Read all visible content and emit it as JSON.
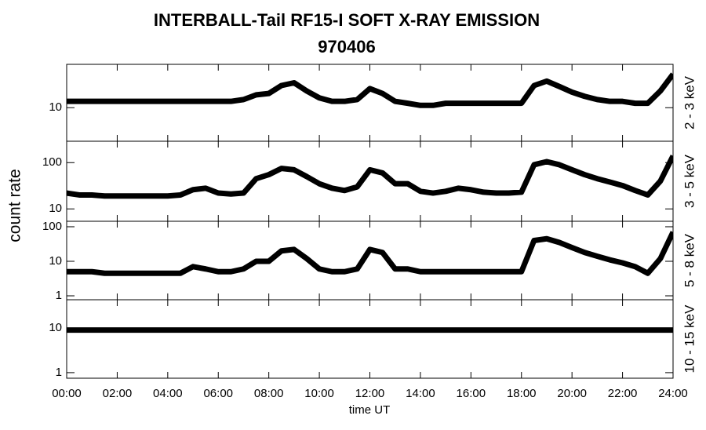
{
  "title": "INTERBALL-Tail RF15-I SOFT X-RAY EMISSION",
  "subtitle": "970406",
  "x_label": "time UT",
  "y_label": "count rate",
  "chart_data": [
    {
      "type": "line",
      "label": "2 - 3 keV",
      "color": "#000000",
      "log_y": true,
      "xlim": [
        0,
        24
      ],
      "ylim": [
        2.5,
        60
      ],
      "yticks": [
        10
      ],
      "x": [
        0,
        0.5,
        1,
        1.5,
        2,
        2.5,
        3,
        3.5,
        4,
        4.5,
        5,
        5.5,
        6,
        6.5,
        7,
        7.5,
        8,
        8.5,
        9,
        9.5,
        10,
        10.5,
        11,
        11.5,
        12,
        12.5,
        13,
        13.5,
        14,
        14.5,
        15,
        15.5,
        16,
        16.5,
        17,
        17.5,
        18,
        18.5,
        19,
        19.5,
        20,
        20.5,
        21,
        21.5,
        22,
        22.5,
        23,
        23.5,
        24
      ],
      "values": [
        13,
        13,
        13,
        13,
        13,
        13,
        13,
        13,
        13,
        13,
        13,
        13,
        13,
        13,
        14,
        17,
        18,
        25,
        28,
        20,
        15,
        13,
        13,
        14,
        22,
        18,
        13,
        12,
        11,
        11,
        12,
        12,
        12,
        12,
        12,
        12,
        12,
        25,
        30,
        24,
        19,
        16,
        14,
        13,
        13,
        12,
        12,
        20,
        40
      ]
    },
    {
      "type": "line",
      "label": "3 - 5 keV",
      "color": "#000000",
      "log_y": true,
      "xlim": [
        0,
        24
      ],
      "ylim": [
        5.4,
        290
      ],
      "yticks": [
        10,
        100
      ],
      "x": [
        0,
        0.5,
        1,
        1.5,
        2,
        2.5,
        3,
        3.5,
        4,
        4.5,
        5,
        5.5,
        6,
        6.5,
        7,
        7.5,
        8,
        8.5,
        9,
        9.5,
        10,
        10.5,
        11,
        11.5,
        12,
        12.5,
        13,
        13.5,
        14,
        14.5,
        15,
        15.5,
        16,
        16.5,
        17,
        17.5,
        18,
        18.5,
        19,
        19.5,
        20,
        20.5,
        21,
        21.5,
        22,
        22.5,
        23,
        23.5,
        24
      ],
      "values": [
        22,
        20,
        20,
        19,
        19,
        19,
        19,
        19,
        19,
        20,
        26,
        28,
        22,
        21,
        22,
        45,
        55,
        75,
        70,
        50,
        35,
        28,
        25,
        30,
        70,
        60,
        35,
        35,
        24,
        22,
        24,
        28,
        26,
        23,
        22,
        22,
        23,
        90,
        105,
        90,
        70,
        55,
        45,
        38,
        32,
        25,
        20,
        40,
        140
      ]
    },
    {
      "type": "line",
      "label": "5 - 8 keV",
      "color": "#000000",
      "log_y": true,
      "xlim": [
        0,
        24
      ],
      "ylim": [
        0.77,
        144
      ],
      "yticks": [
        1,
        10,
        100
      ],
      "x": [
        0,
        0.5,
        1,
        1.5,
        2,
        2.5,
        3,
        3.5,
        4,
        4.5,
        5,
        5.5,
        6,
        6.5,
        7,
        7.5,
        8,
        8.5,
        9,
        9.5,
        10,
        10.5,
        11,
        11.5,
        12,
        12.5,
        13,
        13.5,
        14,
        14.5,
        15,
        15.5,
        16,
        16.5,
        17,
        17.5,
        18,
        18.5,
        19,
        19.5,
        20,
        20.5,
        21,
        21.5,
        22,
        22.5,
        23,
        23.5,
        24
      ],
      "values": [
        5,
        5,
        5,
        4.5,
        4.5,
        4.5,
        4.5,
        4.5,
        4.5,
        4.5,
        7,
        6,
        5,
        5,
        6,
        10,
        10,
        20,
        22,
        12,
        6,
        5,
        5,
        6,
        22,
        18,
        6,
        6,
        5,
        5,
        5,
        5,
        5,
        5,
        5,
        5,
        5,
        40,
        45,
        35,
        25,
        18,
        14,
        11,
        9,
        7,
        4.5,
        12,
        70
      ]
    },
    {
      "type": "line",
      "label": "10 - 15 keV",
      "color": "#000000",
      "log_y": true,
      "xlim": [
        0,
        24
      ],
      "ylim": [
        0.75,
        43
      ],
      "yticks": [
        1,
        10
      ],
      "xticks": [
        {
          "value": 0,
          "label": "00:00"
        },
        {
          "value": 2,
          "label": "02:00"
        },
        {
          "value": 4,
          "label": "04:00"
        },
        {
          "value": 6,
          "label": "06:00"
        },
        {
          "value": 8,
          "label": "08:00"
        },
        {
          "value": 10,
          "label": "10:00"
        },
        {
          "value": 12,
          "label": "12:00"
        },
        {
          "value": 14,
          "label": "14:00"
        },
        {
          "value": 16,
          "label": "16:00"
        },
        {
          "value": 18,
          "label": "18:00"
        },
        {
          "value": 20,
          "label": "20:00"
        },
        {
          "value": 22,
          "label": "22:00"
        },
        {
          "value": 24,
          "label": "24:00"
        }
      ],
      "x": [
        0,
        0.5,
        1,
        1.5,
        2,
        2.5,
        3,
        3.5,
        4,
        4.5,
        5,
        5.5,
        6,
        6.5,
        7,
        7.5,
        8,
        8.5,
        9,
        9.5,
        10,
        10.5,
        11,
        11.5,
        12,
        12.5,
        13,
        13.5,
        14,
        14.5,
        15,
        15.5,
        16,
        16.5,
        17,
        17.5,
        18,
        18.5,
        19,
        19.5,
        20,
        20.5,
        21,
        21.5,
        22,
        22.5,
        23,
        23.5,
        24
      ],
      "values": [
        9,
        9,
        9,
        9,
        9,
        9,
        9,
        9,
        9,
        9,
        9,
        9,
        9,
        9,
        9,
        9,
        9,
        9,
        9,
        9,
        9,
        9,
        9,
        9,
        9,
        9,
        9,
        9,
        9,
        9,
        9,
        9,
        9,
        9,
        9,
        9,
        9,
        9,
        9,
        9,
        9,
        9,
        9,
        9,
        9,
        9,
        9,
        9,
        9
      ]
    }
  ]
}
